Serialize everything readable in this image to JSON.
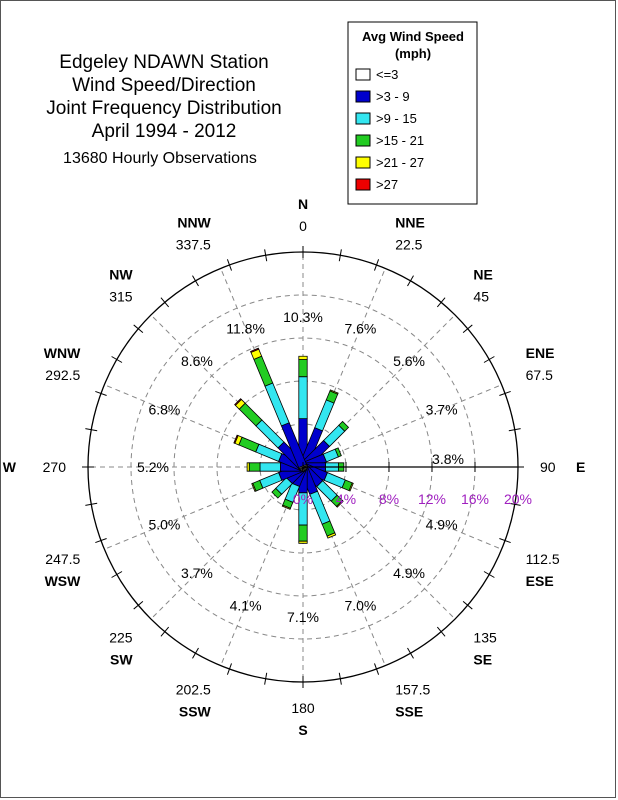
{
  "chart_data": {
    "type": "wind-rose",
    "title_lines": [
      "Edgeley NDAWN Station",
      "Wind Speed/Direction",
      "Joint Frequency Distribution",
      "April 1994 - 2012"
    ],
    "subtitle": "13680 Hourly Observations",
    "legend": {
      "title_lines": [
        "Avg Wind Speed",
        "(mph)"
      ],
      "entries": [
        {
          "label": "<=3",
          "color": "#ffffff"
        },
        {
          "label": ">3 - 9",
          "color": "#0000cc"
        },
        {
          "label": ">9 - 15",
          "color": "#33e6f0"
        },
        {
          "label": ">15 - 21",
          "color": "#22cc22"
        },
        {
          "label": ">21 - 27",
          "color": "#ffff00"
        },
        {
          "label": ">27",
          "color": "#ee0000"
        }
      ]
    },
    "radial_scale": {
      "max": 20,
      "ticks": [
        "0%",
        "4%",
        "8%",
        "12%",
        "16%",
        "20%"
      ],
      "grid_rings": [
        4,
        8,
        12,
        16
      ],
      "grid_style": "dashed"
    },
    "compass_labels": [
      {
        "abbr": "N",
        "deg": "0"
      },
      {
        "abbr": "NNE",
        "deg": "22.5"
      },
      {
        "abbr": "NE",
        "deg": "45"
      },
      {
        "abbr": "ENE",
        "deg": "67.5"
      },
      {
        "abbr": "E",
        "deg": "90"
      },
      {
        "abbr": "ESE",
        "deg": "112.5"
      },
      {
        "abbr": "SE",
        "deg": "135"
      },
      {
        "abbr": "SSE",
        "deg": "157.5"
      },
      {
        "abbr": "S",
        "deg": "180"
      },
      {
        "abbr": "SSW",
        "deg": "202.5"
      },
      {
        "abbr": "SW",
        "deg": "225"
      },
      {
        "abbr": "WSW",
        "deg": "247.5"
      },
      {
        "abbr": "W",
        "deg": "270"
      },
      {
        "abbr": "WNW",
        "deg": "292.5"
      },
      {
        "abbr": "NW",
        "deg": "315"
      },
      {
        "abbr": "NNW",
        "deg": "337.5"
      }
    ],
    "directions": [
      {
        "dir": "N",
        "angle": 0,
        "total": 10.3,
        "label": "10.3%",
        "segments": [
          0.1,
          4.4,
          3.9,
          1.6,
          0.3,
          0.0
        ]
      },
      {
        "dir": "NNE",
        "angle": 22.5,
        "total": 7.6,
        "label": "7.6%",
        "segments": [
          0.1,
          3.7,
          2.8,
          0.9,
          0.1,
          0.0
        ]
      },
      {
        "dir": "NE",
        "angle": 45,
        "total": 5.6,
        "label": "5.6%",
        "segments": [
          0.1,
          3.0,
          2.0,
          0.5,
          0.0,
          0.0
        ]
      },
      {
        "dir": "ENE",
        "angle": 67.5,
        "total": 3.7,
        "label": "3.7%",
        "segments": [
          0.1,
          2.1,
          1.2,
          0.3,
          0.0,
          0.0
        ]
      },
      {
        "dir": "E",
        "angle": 90,
        "total": 3.8,
        "label": "3.8%",
        "segments": [
          0.1,
          2.0,
          1.2,
          0.5,
          0.0,
          0.0
        ]
      },
      {
        "dir": "ESE",
        "angle": 112.5,
        "total": 4.9,
        "label": "4.9%",
        "segments": [
          0.1,
          2.2,
          1.8,
          0.7,
          0.1,
          0.0
        ]
      },
      {
        "dir": "SE",
        "angle": 135,
        "total": 4.9,
        "label": "4.9%",
        "segments": [
          0.1,
          2.1,
          1.9,
          0.7,
          0.1,
          0.0
        ]
      },
      {
        "dir": "SSE",
        "angle": 157.5,
        "total": 7.0,
        "label": "7.0%",
        "segments": [
          0.1,
          2.5,
          3.0,
          1.2,
          0.2,
          0.0
        ]
      },
      {
        "dir": "S",
        "angle": 180,
        "total": 7.1,
        "label": "7.1%",
        "segments": [
          0.1,
          2.3,
          3.0,
          1.5,
          0.2,
          0.0
        ]
      },
      {
        "dir": "SSW",
        "angle": 202.5,
        "total": 4.1,
        "label": "4.1%",
        "segments": [
          0.1,
          1.7,
          1.6,
          0.6,
          0.1,
          0.0
        ]
      },
      {
        "dir": "SW",
        "angle": 225,
        "total": 3.7,
        "label": "3.7%",
        "segments": [
          0.1,
          1.7,
          1.4,
          0.5,
          0.0,
          0.0
        ]
      },
      {
        "dir": "WSW",
        "angle": 247.5,
        "total": 5.0,
        "label": "5.0%",
        "segments": [
          0.1,
          2.2,
          1.9,
          0.7,
          0.1,
          0.0
        ]
      },
      {
        "dir": "W",
        "angle": 270,
        "total": 5.2,
        "label": "5.2%",
        "segments": [
          0.1,
          2.0,
          1.9,
          1.0,
          0.2,
          0.0
        ]
      },
      {
        "dir": "WNW",
        "angle": 292.5,
        "total": 6.8,
        "label": "6.8%",
        "segments": [
          0.1,
          2.2,
          2.3,
          1.7,
          0.4,
          0.1
        ]
      },
      {
        "dir": "NW",
        "angle": 315,
        "total": 8.6,
        "label": "8.6%",
        "segments": [
          0.1,
          2.8,
          2.9,
          2.2,
          0.5,
          0.1
        ]
      },
      {
        "dir": "NNW",
        "angle": 337.5,
        "total": 11.8,
        "label": "11.8%",
        "segments": [
          0.1,
          4.2,
          4.0,
          2.7,
          0.7,
          0.1
        ]
      }
    ]
  }
}
